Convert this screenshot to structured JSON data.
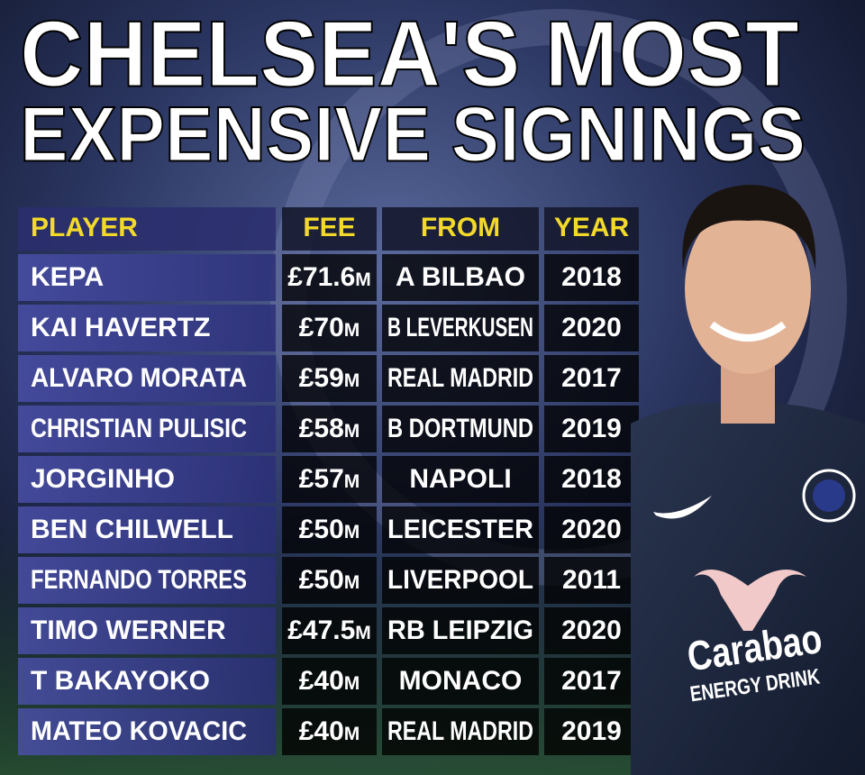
{
  "title": {
    "line1": "CHELSEA'S MOST",
    "line2": "EXPENSIVE SIGNINGS"
  },
  "table": {
    "header": [
      "PLAYER",
      "FEE",
      "FROM",
      "YEAR"
    ],
    "rows": [
      [
        "KEPA",
        "£71.6m",
        "A BILBAO",
        "2018"
      ],
      [
        "KAI HAVERTZ",
        "£70m",
        "B LEVERKUSEN",
        "2020"
      ],
      [
        "ALVARO MORATA",
        "£59m",
        "REAL MADRID",
        "2017"
      ],
      [
        "CHRISTIAN PULISIC",
        "£58m",
        "B DORTMUND",
        "2019"
      ],
      [
        "JORGINHO",
        "£57m",
        "NAPOLI",
        "2018"
      ],
      [
        "BEN CHILWELL",
        "£50m",
        "LEICESTER",
        "2020"
      ],
      [
        "FERNANDO TORRES",
        "£50m",
        "LIVERPOOL",
        "2011"
      ],
      [
        "TIMO WERNER",
        "£47.5m",
        "RB LEIPZIG",
        "2020"
      ],
      [
        "T BAKAYOKO",
        "£40m",
        "MONACO",
        "2017"
      ],
      [
        "MATEO KOVACIC",
        "£40m",
        "REAL MADRID",
        "2019"
      ]
    ]
  },
  "photo": {
    "sponsor": "Carabao",
    "sponsor_tagline": "ENERGY DRINK"
  }
}
